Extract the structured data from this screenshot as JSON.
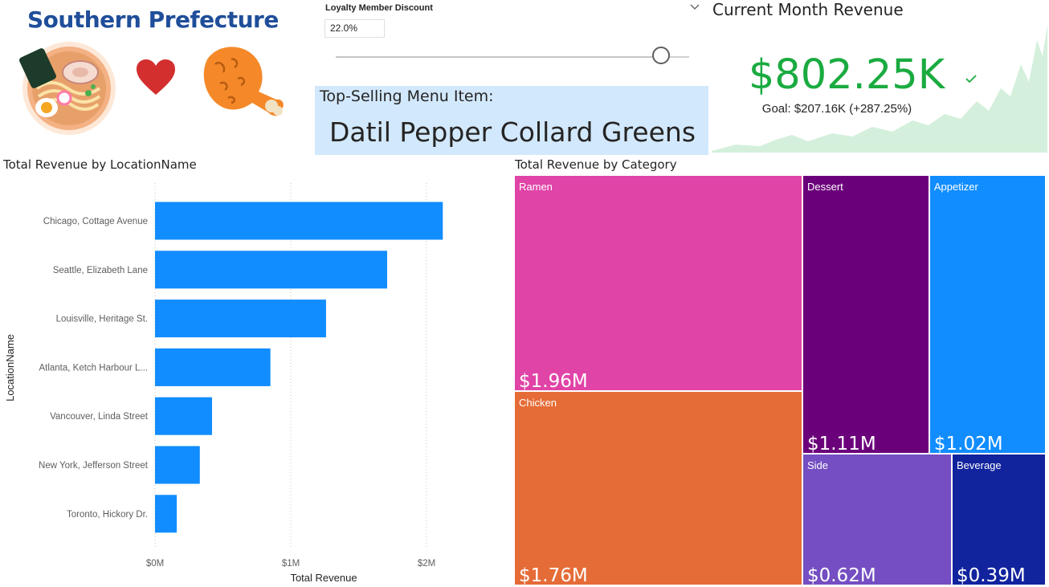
{
  "brand": {
    "title": "Southern Prefecture"
  },
  "slicer": {
    "title": "Loyalty Member Discount",
    "value": "22.0%",
    "level_percent": 92
  },
  "top_card": {
    "label": "Top-Selling Menu Item:",
    "value": "Datil Pepper Collard Greens"
  },
  "kpi": {
    "title": "Current Month Revenue",
    "value": "$802.25K",
    "goal": "Goal: $207.16K (+287.25%)"
  },
  "colors": {
    "bar": "#118dff",
    "kpi_green": "#1aab40",
    "spark_fill": "#d4f0dc",
    "card_bg": "#d2e8fc",
    "ramen": "#e044a7",
    "chicken": "#e66c37",
    "dessert": "#6b007b",
    "appetizer": "#118dff",
    "side": "#744ec2",
    "beverage": "#12239e"
  },
  "chart_data": [
    {
      "type": "bar",
      "orientation": "horizontal",
      "title": "Total Revenue by LocationName",
      "xlabel": "Total Revenue",
      "ylabel": "LocationName",
      "categories": [
        "Chicago, Cottage Avenue",
        "Seattle, Elizabeth Lane",
        "Louisville, Heritage St.",
        "Atlanta, Ketch Harbour L...",
        "Vancouver, Linda Street",
        "New York, Jefferson Street",
        "Toronto, Hickory Dr."
      ],
      "values": [
        2.12,
        1.71,
        1.26,
        0.85,
        0.42,
        0.33,
        0.16
      ],
      "unit": "M",
      "xlim": [
        0,
        2.4
      ],
      "xticks": [
        0,
        1,
        2
      ],
      "xtick_labels": [
        "$0M",
        "$1M",
        "$2M"
      ],
      "grid": true
    },
    {
      "type": "treemap",
      "title": "Total Revenue by Category",
      "items": [
        {
          "name": "Ramen",
          "value": 1.96,
          "label": "$1.96M"
        },
        {
          "name": "Chicken",
          "value": 1.76,
          "label": "$1.76M"
        },
        {
          "name": "Dessert",
          "value": 1.11,
          "label": "$1.11M"
        },
        {
          "name": "Appetizer",
          "value": 1.02,
          "label": "$1.02M"
        },
        {
          "name": "Side",
          "value": 0.62,
          "label": "$0.62M"
        },
        {
          "name": "Beverage",
          "value": 0.39,
          "label": "$0.39M"
        }
      ]
    }
  ]
}
